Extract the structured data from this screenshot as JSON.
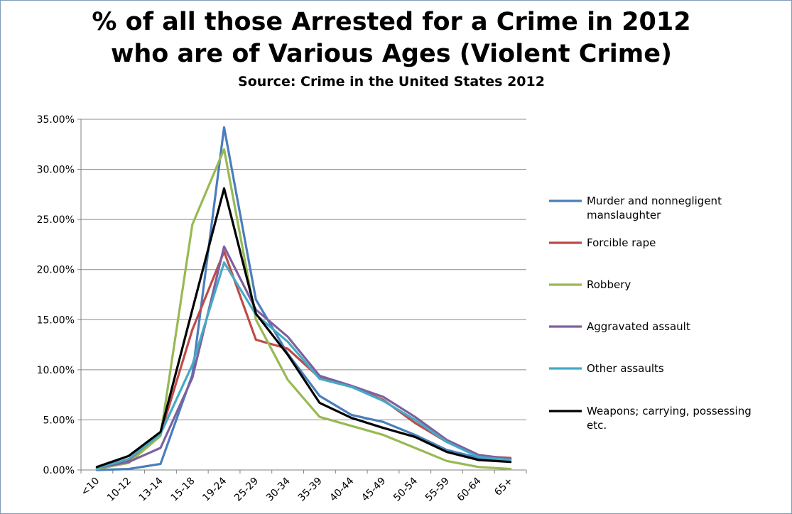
{
  "chart_data": {
    "type": "line",
    "title_lines": [
      "% of all those Arrested for a Crime in 2012",
      "who are of Various Ages (Violent Crime)"
    ],
    "subtitle": "Source: Crime in the United States 2012",
    "xlabel": "",
    "ylabel": "",
    "categories": [
      "<10",
      "10-12",
      "13-14",
      "15-18",
      "19-24",
      "25-29",
      "30-34",
      "35-39",
      "40-44",
      "45-49",
      "50-54",
      "55-59",
      "60-64",
      "65+"
    ],
    "ylim": [
      0,
      0.35
    ],
    "yticks": [
      0,
      0.05,
      0.1,
      0.15,
      0.2,
      0.25,
      0.3,
      0.35
    ],
    "ytick_labels": [
      "0.00%",
      "5.00%",
      "10.00%",
      "15.00%",
      "20.00%",
      "25.00%",
      "30.00%",
      "35.00%"
    ],
    "grid": true,
    "legend_position": "right",
    "series": [
      {
        "name": "Murder and nonnegligent manslaughter",
        "legend_lines": [
          "Murder and nonnegligent",
          "manslaughter"
        ],
        "color": "#4a7ebb",
        "values": [
          0.0,
          0.001,
          0.006,
          0.095,
          0.342,
          0.17,
          0.116,
          0.074,
          0.055,
          0.048,
          0.035,
          0.02,
          0.012,
          0.01
        ]
      },
      {
        "name": "Forcible rape",
        "legend_lines": [
          "Forcible rape"
        ],
        "color": "#be4b48",
        "values": [
          0.002,
          0.01,
          0.036,
          0.14,
          0.218,
          0.13,
          0.121,
          0.092,
          0.083,
          0.07,
          0.047,
          0.028,
          0.014,
          0.012
        ]
      },
      {
        "name": "Robbery",
        "legend_lines": [
          "Robbery"
        ],
        "color": "#98b954",
        "values": [
          0.001,
          0.007,
          0.034,
          0.245,
          0.32,
          0.15,
          0.09,
          0.053,
          0.044,
          0.035,
          0.022,
          0.009,
          0.003,
          0.001
        ]
      },
      {
        "name": "Aggravated assault",
        "legend_lines": [
          "Aggravated assault"
        ],
        "color": "#7d60a0",
        "values": [
          0.002,
          0.008,
          0.022,
          0.092,
          0.223,
          0.16,
          0.133,
          0.094,
          0.084,
          0.073,
          0.053,
          0.03,
          0.015,
          0.011
        ]
      },
      {
        "name": "Other assaults",
        "legend_lines": [
          "Other assaults"
        ],
        "color": "#46aac5",
        "values": [
          0.002,
          0.011,
          0.036,
          0.105,
          0.207,
          0.155,
          0.128,
          0.091,
          0.083,
          0.069,
          0.05,
          0.028,
          0.013,
          0.01
        ]
      },
      {
        "name": "Weapons; carrying, possessing etc.",
        "legend_lines": [
          "Weapons; carrying, possessing",
          "etc."
        ],
        "color": "#000000",
        "values": [
          0.003,
          0.014,
          0.038,
          0.16,
          0.281,
          0.156,
          0.115,
          0.067,
          0.052,
          0.042,
          0.033,
          0.018,
          0.01,
          0.008
        ]
      }
    ]
  }
}
